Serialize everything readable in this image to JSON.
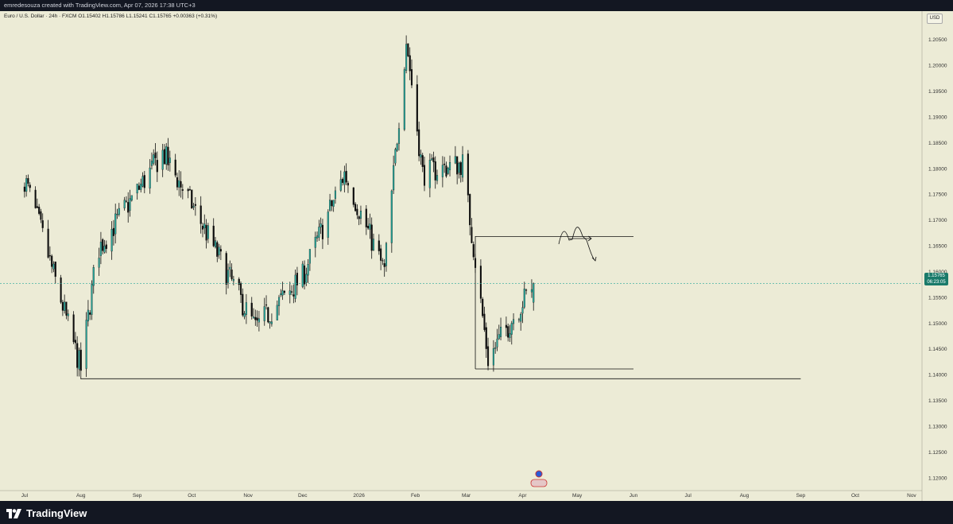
{
  "header": {
    "credit": "emredesouza created with TradingView.com, Apr 07, 2026 17:38 UTC+3"
  },
  "symbol_info": "Euro / U.S. Dollar · 24h · FXCM  O1.15402  H1.15786  L1.15241  C1.15765  +0.00363 (+0.31%)",
  "currency": "USD",
  "price_badge": {
    "price": "1.15765",
    "countdown": "06:23:05"
  },
  "footer": {
    "logo_text": "TradingView"
  },
  "colors": {
    "up": "#26a69a",
    "down": "#0a0a0a",
    "background": "#ecebd6",
    "last_price_line": "#26a69a"
  },
  "chart_data": {
    "type": "candlestick",
    "title": "",
    "ylim": [
      1.1155,
      1.2105
    ],
    "y_ticks": [
      "1.20500",
      "1.20000",
      "1.19500",
      "1.19000",
      "1.18500",
      "1.18000",
      "1.17500",
      "1.17000",
      "1.16500",
      "1.16000",
      "1.15500",
      "1.15000",
      "1.14500",
      "1.14000",
      "1.13500",
      "1.13000",
      "1.12500",
      "1.12000"
    ],
    "x_ticks": [
      {
        "label": "Jul",
        "day": 3
      },
      {
        "label": "Aug",
        "day": 34
      },
      {
        "label": "Sep",
        "day": 65
      },
      {
        "label": "Oct",
        "day": 95
      },
      {
        "label": "Nov",
        "day": 126
      },
      {
        "label": "Dec",
        "day": 156
      },
      {
        "label": "2026",
        "day": 187
      },
      {
        "label": "Feb",
        "day": 218
      },
      {
        "label": "Mar",
        "day": 246
      },
      {
        "label": "Apr",
        "day": 277
      },
      {
        "label": "May",
        "day": 307
      },
      {
        "label": "Jun",
        "day": 338
      },
      {
        "label": "Jul",
        "day": 368
      },
      {
        "label": "Aug",
        "day": 399
      },
      {
        "label": "Sep",
        "day": 430
      },
      {
        "label": "Oct",
        "day": 460
      },
      {
        "label": "Nov",
        "day": 491
      }
    ],
    "last_price": 1.15765,
    "ohlc_key_points": [
      {
        "date": "2025-07-01",
        "close": 1.178
      },
      {
        "date": "2025-07-10",
        "close": 1.168
      },
      {
        "date": "2025-08-01",
        "close": 1.141
      },
      {
        "date": "2025-08-10",
        "close": 1.164
      },
      {
        "date": "2025-09-15",
        "close": 1.183
      },
      {
        "date": "2025-10-01",
        "close": 1.173
      },
      {
        "date": "2025-11-05",
        "close": 1.149
      },
      {
        "date": "2025-12-01",
        "close": 1.159
      },
      {
        "date": "2025-12-24",
        "close": 1.179
      },
      {
        "date": "2026-01-15",
        "close": 1.16
      },
      {
        "date": "2026-01-27",
        "close": 1.205
      },
      {
        "date": "2026-02-05",
        "close": 1.179
      },
      {
        "date": "2026-02-27",
        "close": 1.181
      },
      {
        "date": "2026-03-13",
        "close": 1.143
      },
      {
        "date": "2026-04-07",
        "close": 1.15765
      }
    ],
    "annotations": [
      {
        "type": "hline",
        "price": 1.1392,
        "from": "2025-08-01",
        "to": "2026-09-01"
      },
      {
        "type": "rectangle",
        "top": 1.1668,
        "bottom": 1.1411,
        "from": "2026-03-06",
        "to": "2026-06-01"
      },
      {
        "type": "path-arrow",
        "note": "projected zigzag"
      }
    ]
  }
}
